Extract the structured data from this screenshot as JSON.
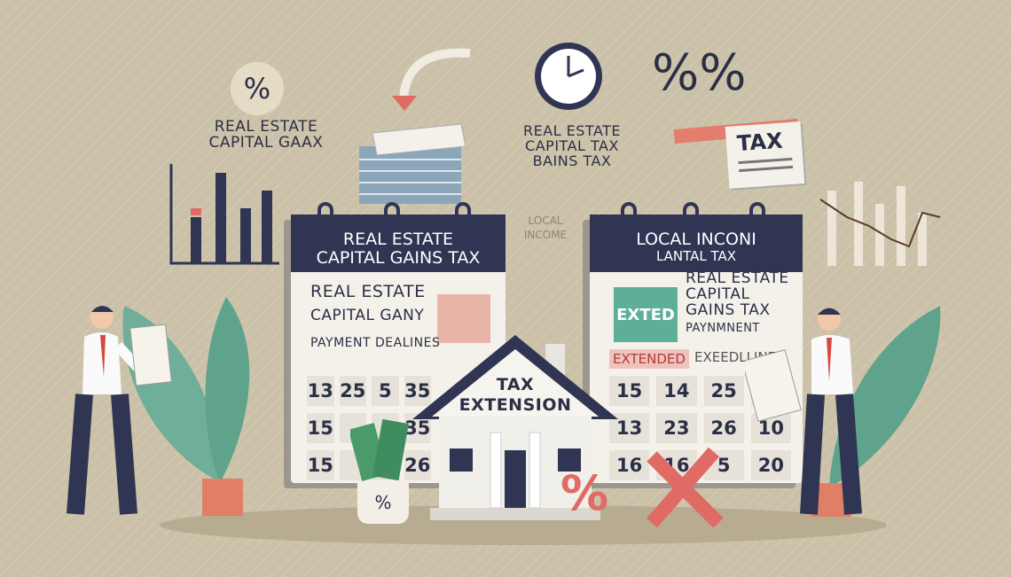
{
  "colors": {
    "navy": "#2f3553",
    "accent_red": "#e06a64",
    "accent_teal": "#5fae98",
    "background": "#cbc1a8"
  },
  "top_left": {
    "percent": "%",
    "line1": "REAL ESTATE",
    "line2": "CAPITAL GAAX"
  },
  "top_center": {
    "line1": "REAL ESTATE",
    "line2": "CAPITAL   TAX",
    "line3": "BAINS TAX"
  },
  "top_right": {
    "percent": "%%",
    "tax_doc": "TAX"
  },
  "side_label": {
    "line1": "LOCAL",
    "line2": "INCOME"
  },
  "left_calendar": {
    "header1": "REAL ESTATE",
    "header2": "CAPITAL GAINS TAX",
    "line1": "REAL ESTATE",
    "line2": "CAPITAL GANY",
    "line3": "PAYMENT DEALINES",
    "cells": [
      "13",
      "25",
      "5",
      "35",
      "15",
      "",
      "",
      "35",
      "15",
      "",
      "",
      "26"
    ]
  },
  "right_calendar": {
    "header1": "LOCAL INCONI",
    "header2": "LANTAL TAX",
    "badge": "EXTED",
    "line1": "REAL ESTATE",
    "line2": "CAPITAL",
    "line3": "GAINS TAX",
    "line4": "PAYNMNENT",
    "extended": "EXTENDED",
    "deadlines": "EXEEDLLINES",
    "cells": [
      "15",
      "14",
      "25",
      "8",
      "13",
      "23",
      "26",
      "10",
      "16",
      "16",
      "5",
      "20"
    ]
  },
  "house": {
    "line1": "TAX",
    "line2": "EXTENSION"
  },
  "pot": {
    "percent": "%"
  },
  "foreground": {
    "percent": "%"
  }
}
